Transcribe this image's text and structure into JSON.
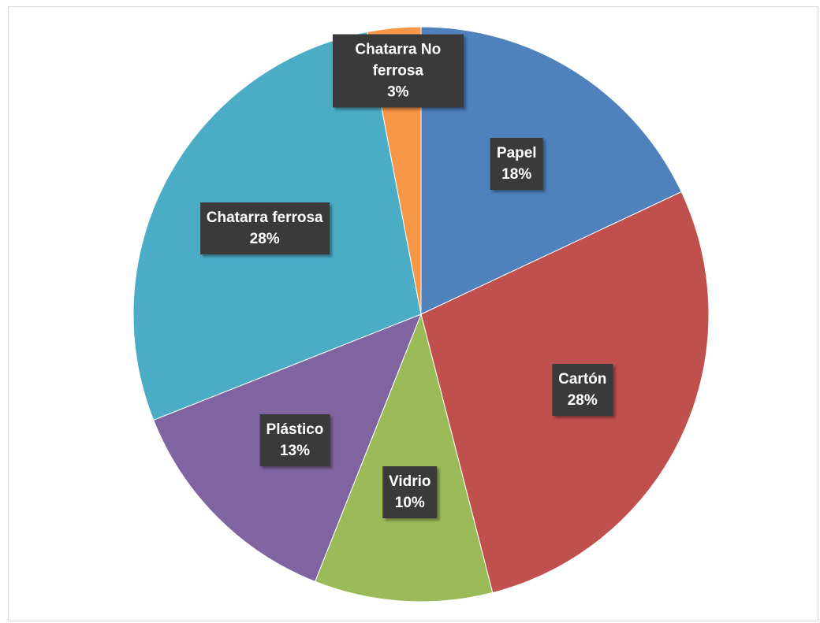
{
  "chart_data": {
    "type": "pie",
    "categories": [
      "Papel",
      "Cartón",
      "Vidrio",
      "Plástico",
      "Chatarra ferrosa",
      "Chatarra No ferrosa"
    ],
    "values": [
      18,
      28,
      10,
      13,
      28,
      3
    ],
    "value_labels": [
      "18%",
      "28%",
      "10%",
      "13%",
      "28%",
      "3%"
    ],
    "colors": [
      "#4f81bd",
      "#c0504d",
      "#9bbb59",
      "#8064a2",
      "#4bacc6",
      "#f79646"
    ]
  }
}
